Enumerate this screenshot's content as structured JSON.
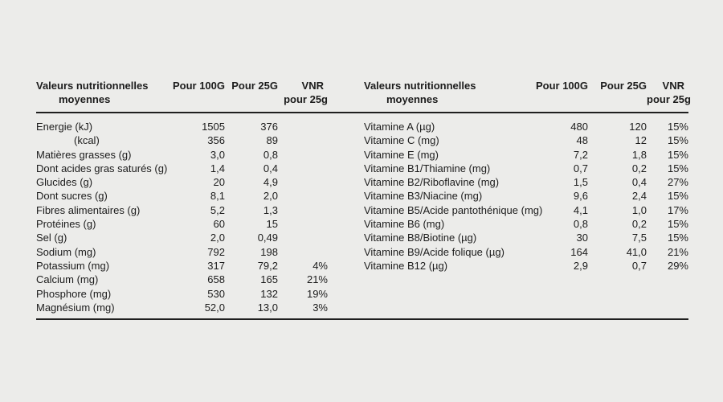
{
  "page": {
    "background_color": "#ececea",
    "text_color": "#1c1c1c",
    "rule_color": "#1f1f1f"
  },
  "tables": [
    {
      "name": "minerals",
      "header": {
        "label_line1": "Valeurs nutritionnelles",
        "label_line2": "moyennes",
        "col_100g": "Pour 100G",
        "col_25g": "Pour 25G",
        "col_vnr_line1": "VNR",
        "col_vnr_line2": "pour 25g"
      },
      "rows": [
        {
          "label": "Energie (kJ)",
          "per100": "1505",
          "per25": "376",
          "vnr": ""
        },
        {
          "label": "(kcal)",
          "indent": true,
          "per100": "356",
          "per25": "89",
          "vnr": ""
        },
        {
          "label": "Matières grasses (g)",
          "per100": "3,0",
          "per25": "0,8",
          "vnr": ""
        },
        {
          "label": "Dont acides gras saturés (g)",
          "per100": "1,4",
          "per25": "0,4",
          "vnr": ""
        },
        {
          "label": "Glucides (g)",
          "per100": "20",
          "per25": "4,9",
          "vnr": ""
        },
        {
          "label": "Dont sucres (g)",
          "per100": "8,1",
          "per25": "2,0",
          "vnr": ""
        },
        {
          "label": "Fibres alimentaires (g)",
          "per100": "5,2",
          "per25": "1,3",
          "vnr": ""
        },
        {
          "label": "Protéines (g)",
          "per100": "60",
          "per25": "15",
          "vnr": ""
        },
        {
          "label": "Sel (g)",
          "per100": "2,0",
          "per25": "0,49",
          "vnr": ""
        },
        {
          "label": "Sodium (mg)",
          "per100": "792",
          "per25": "198",
          "vnr": ""
        },
        {
          "label": "Potassium (mg)",
          "per100": "317",
          "per25": "79,2",
          "vnr": "4%"
        },
        {
          "label": "Calcium (mg)",
          "per100": "658",
          "per25": "165",
          "vnr": "21%"
        },
        {
          "label": "Phosphore (mg)",
          "per100": "530",
          "per25": "132",
          "vnr": "19%"
        },
        {
          "label": "Magnésium (mg)",
          "per100": "52,0",
          "per25": "13,0",
          "vnr": "3%"
        }
      ]
    },
    {
      "name": "vitamins",
      "header": {
        "label_line1": "Valeurs nutritionnelles",
        "label_line2": "moyennes",
        "col_100g": "Pour 100G",
        "col_25g": "Pour 25G",
        "col_vnr_line1": "VNR",
        "col_vnr_line2": "pour 25g"
      },
      "rows": [
        {
          "label": "Vitamine A (µg)",
          "per100": "480",
          "per25": "120",
          "vnr": "15%"
        },
        {
          "label": "Vitamine C (mg)",
          "per100": "48",
          "per25": "12",
          "vnr": "15%"
        },
        {
          "label": "Vitamine E (mg)",
          "per100": "7,2",
          "per25": "1,8",
          "vnr": "15%"
        },
        {
          "label": "Vitamine B1/Thiamine (mg)",
          "per100": "0,7",
          "per25": "0,2",
          "vnr": "15%"
        },
        {
          "label": "Vitamine B2/Riboflavine (mg)",
          "per100": "1,5",
          "per25": "0,4",
          "vnr": "27%"
        },
        {
          "label": "Vitamine B3/Niacine (mg)",
          "per100": "9,6",
          "per25": "2,4",
          "vnr": "15%"
        },
        {
          "label": "Vitamine B5/Acide pantothénique (mg)",
          "per100": "4,1",
          "per25": "1,0",
          "vnr": "17%"
        },
        {
          "label": "Vitamine B6 (mg)",
          "per100": "0,8",
          "per25": "0,2",
          "vnr": "15%"
        },
        {
          "label": "Vitamine B8/Biotine (µg)",
          "per100": "30",
          "per25": "7,5",
          "vnr": "15%"
        },
        {
          "label": "Vitamine B9/Acide folique (µg)",
          "per100": "164",
          "per25": "41,0",
          "vnr": "21%"
        },
        {
          "label": "Vitamine B12 (µg)",
          "per100": "2,9",
          "per25": "0,7",
          "vnr": "29%"
        }
      ]
    }
  ]
}
